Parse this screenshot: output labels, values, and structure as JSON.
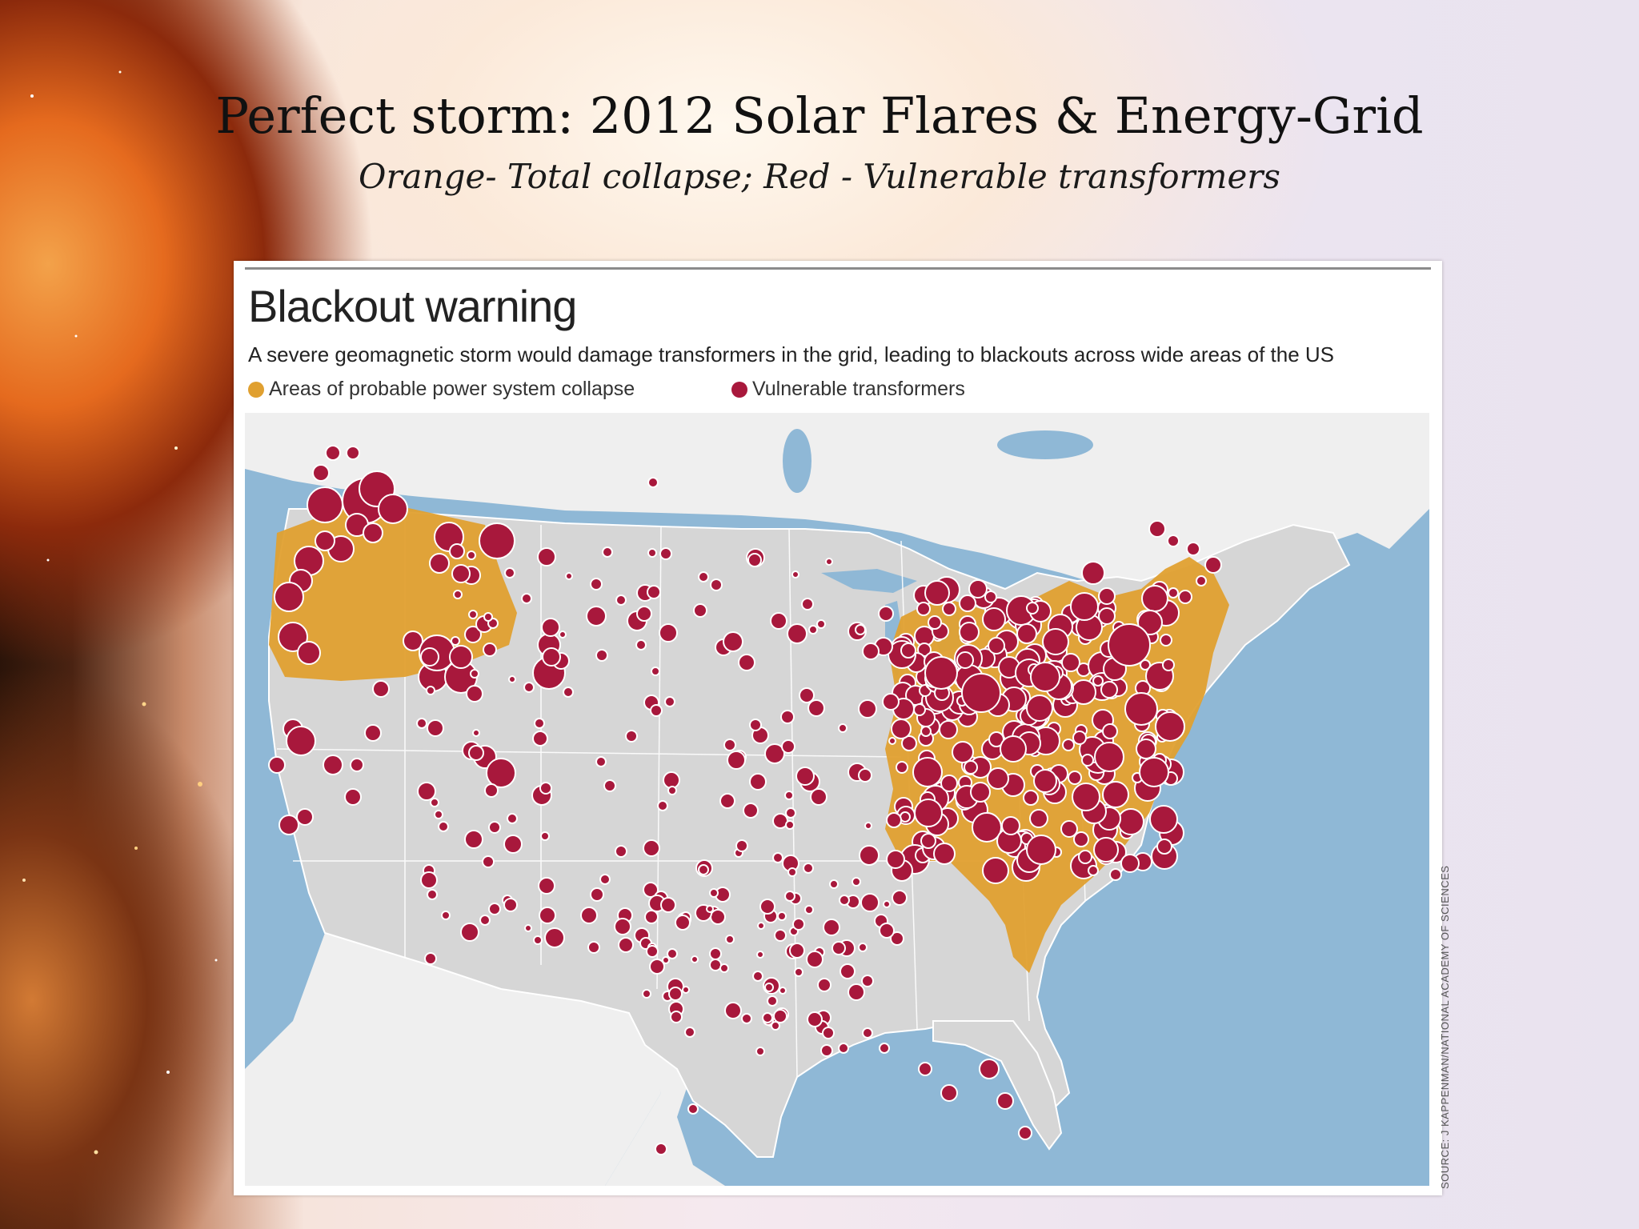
{
  "slide": {
    "title": "Perfect storm: 2012 Solar Flares & Energy-Grid",
    "subtitle": "Orange- Total collapse; Red - Vulnerable transformers"
  },
  "figure": {
    "title": "Blackout warning",
    "subtitle": "A severe geomagnetic storm would damage transformers in the grid, leading to blackouts across wide areas of the US",
    "legend": [
      {
        "label": "Areas of probable power system collapse",
        "color": "#e0a030"
      },
      {
        "label": "Vulnerable transformers",
        "color": "#a8183c"
      }
    ],
    "source": "SOURCE: J KAPPENMAN/NATIONAL ACADEMY OF SCIENCES"
  },
  "map": {
    "ocean_color": "#8fb8d6",
    "land_color": "#d6d6d6",
    "neighbor_land_color": "#efefef",
    "collapse_color": "#e0a030",
    "transformer_color": "#a8183c"
  }
}
